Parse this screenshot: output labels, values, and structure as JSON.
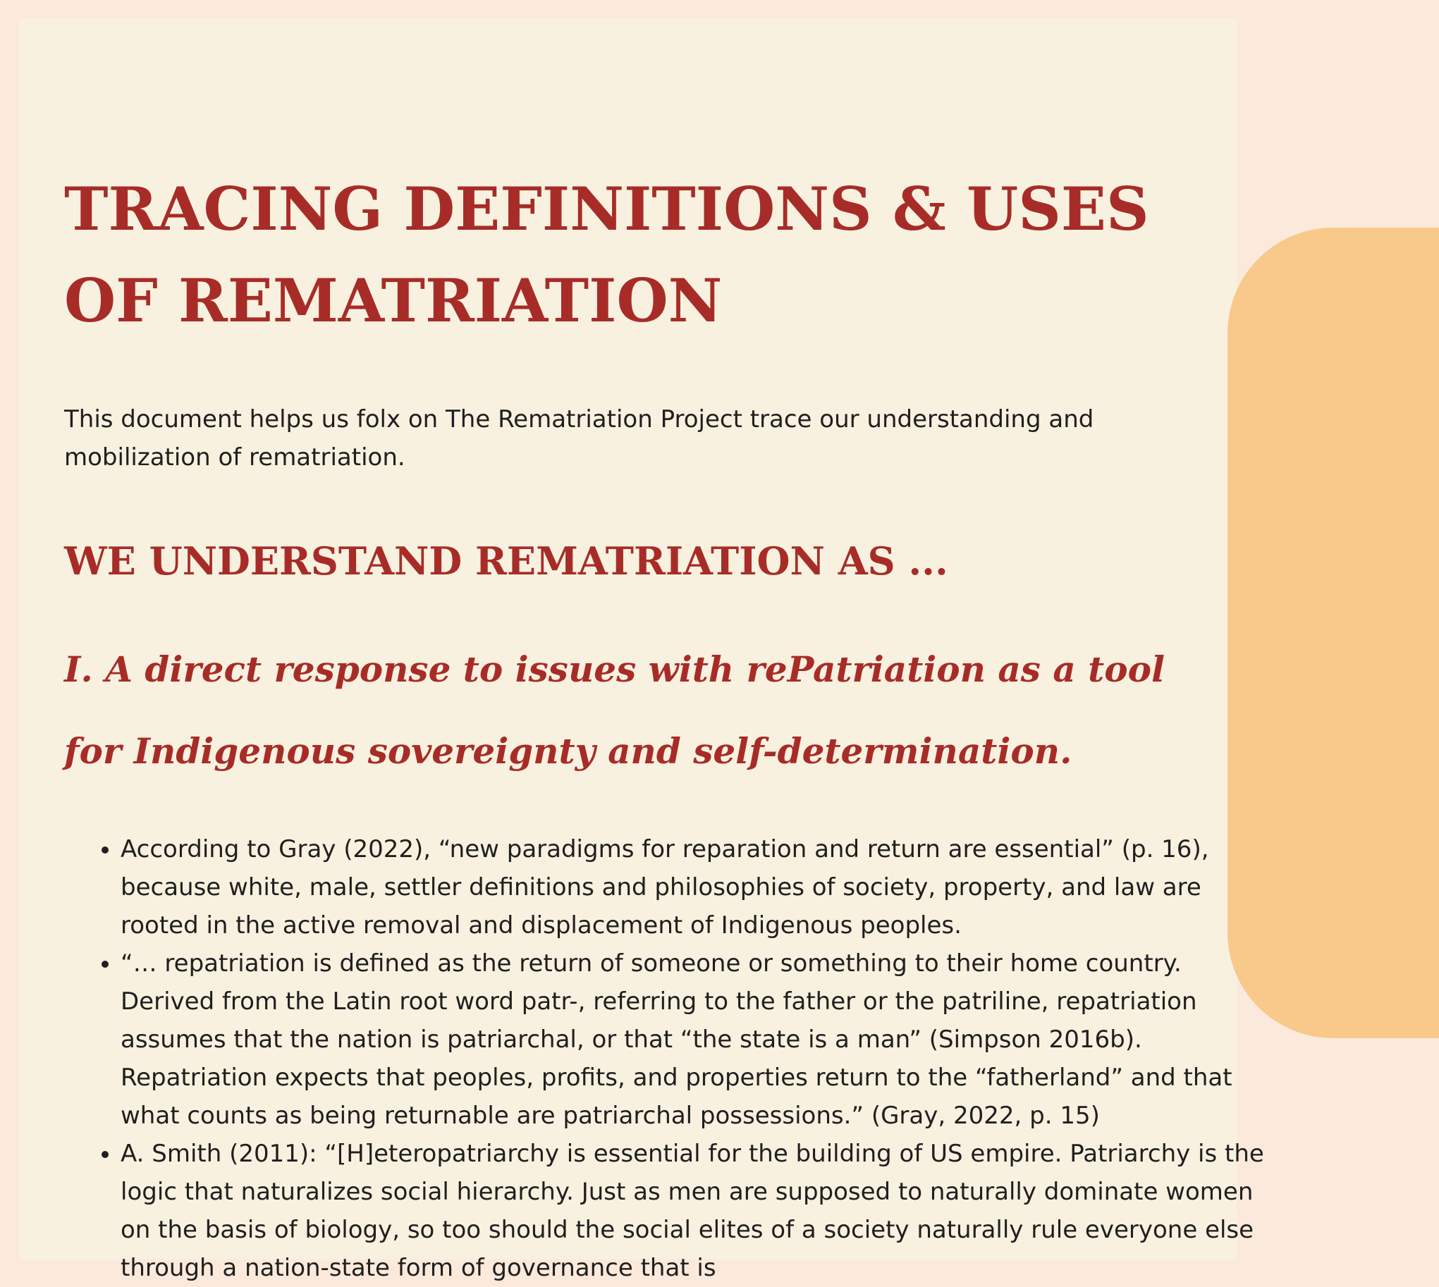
{
  "document": {
    "title": "TRACING DEFINITIONS & USES OF REMATRIATION",
    "intro": "This document helps us folx on The Rematriation Project trace our understanding and mobilization of rematriation.",
    "section_heading": "WE UNDERSTAND REMATRIATION AS ...",
    "subsection_heading": "I. A direct response to issues with rePatriation as a tool for Indigenous sovereignty and self-determination.",
    "bullets": [
      "According to Gray (2022), “new paradigms for reparation and return are essential” (p. 16), because white, male, settler definitions and philosophies of society, property, and law are rooted in the active removal and displacement of Indigenous peoples.",
      "“… repatriation is defined as the return of someone or something to their home country. Derived from the Latin root word patr-, referring to the father or the patriline, repatriation assumes that the nation is patriarchal, or that “the state is a man” (Simpson 2016b). Repatriation expects that peoples, profits, and properties return to the “fatherland” and that what counts as being returnable are patriarchal possessions.” (Gray, 2022, p. 15)",
      "A. Smith (2011): “[H]eteropatriarchy is essential for the building of US empire. Patriarchy is the logic that naturalizes social hierarchy. Just as men are supposed to naturally dominate women on the basis of biology, so too should the social elites of a society naturally rule everyone else through a nation-state form of governance that is"
    ]
  },
  "colors": {
    "background": "#fbeadb",
    "page": "#f8f1df",
    "accent": "#a72c28",
    "decoration": "#f8c98a",
    "text": "#1f1f1f"
  }
}
